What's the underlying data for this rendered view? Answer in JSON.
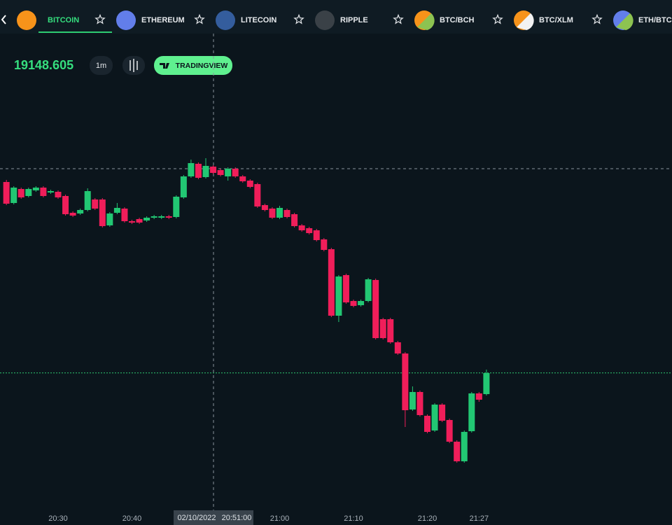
{
  "tabs": [
    {
      "label": "BITCOIN"
    },
    {
      "label": "ETHEREUM"
    },
    {
      "label": "LITECOIN"
    },
    {
      "label": "RIPPLE"
    },
    {
      "label": "BTC/BCH"
    },
    {
      "label": "BTC/XLM"
    },
    {
      "label": "ETH/BTC"
    }
  ],
  "toolbar": {
    "price": 19148.605,
    "interval": "1m",
    "tradingview": "TRADINGVIEW"
  },
  "crosshair": {
    "date": "02/10/2022",
    "time": "20:51:00"
  },
  "chart_data": {
    "type": "candlestick",
    "x": [
      "20:23",
      "20:24",
      "20:25",
      "20:26",
      "20:27",
      "20:28",
      "20:29",
      "20:30",
      "20:31",
      "20:32",
      "20:33",
      "20:34",
      "20:35",
      "20:36",
      "20:37",
      "20:38",
      "20:39",
      "20:40",
      "20:41",
      "20:42",
      "20:43",
      "20:44",
      "20:45",
      "20:46",
      "20:47",
      "20:48",
      "20:49",
      "20:50",
      "20:51",
      "20:52",
      "20:53",
      "20:54",
      "20:55",
      "20:56",
      "20:57",
      "20:58",
      "20:59",
      "21:00",
      "21:01",
      "21:02",
      "21:03",
      "21:04",
      "21:05",
      "21:06",
      "21:07",
      "21:08",
      "21:09",
      "21:10",
      "21:11",
      "21:12",
      "21:13",
      "21:14",
      "21:15",
      "21:16",
      "21:17",
      "21:18",
      "21:19",
      "21:20",
      "21:21",
      "21:22",
      "21:23",
      "21:24",
      "21:25",
      "21:26",
      "21:27",
      "21:28"
    ],
    "open": [
      19285,
      19270,
      19280,
      19275,
      19279,
      19281,
      19277.5,
      19278,
      19275,
      19263,
      19262.5,
      19265,
      19272.5,
      19272.5,
      19254,
      19263,
      19266,
      19257,
      19258.5,
      19257.5,
      19259.5,
      19259.5,
      19260.5,
      19260,
      19274,
      19289,
      19298,
      19288.5,
      19296,
      19293.5,
      19289,
      19294.5,
      19289,
      19286,
      19283.5,
      19268.5,
      19266,
      19259.5,
      19265,
      19262,
      19254,
      19252,
      19250.5,
      19244,
      19237,
      19189.5,
      19218.5,
      19200,
      19197,
      19200,
      19215,
      19187,
      19187,
      19170.5,
      19162.5,
      19122.5,
      19135,
      19118,
      19107.5,
      19126,
      19115,
      19099.5,
      19085.5,
      19107,
      19134,
      19133.5
    ],
    "high": [
      19286.5,
      19282,
      19281,
      19281,
      19282,
      19282,
      19279.5,
      19279,
      19276,
      19264,
      19266,
      19280.5,
      19273.5,
      19273.5,
      19263.5,
      19270,
      19267,
      19258,
      19259.5,
      19260.5,
      19261.5,
      19261.5,
      19261.5,
      19275.5,
      19290,
      19301,
      19299,
      19302,
      19297,
      19294.5,
      19295.5,
      19295.5,
      19290,
      19287,
      19284.5,
      19269.5,
      19267,
      19268,
      19266,
      19263,
      19255,
      19253,
      19251.5,
      19245,
      19238,
      19218.5,
      19219.5,
      19201,
      19201,
      19216.5,
      19216,
      19188,
      19188,
      19171.5,
      19163.5,
      19139,
      19136,
      19119,
      19127,
      19127,
      19116,
      19100.5,
      19107.5,
      19135,
      19135,
      19151
    ],
    "low": [
      19268.5,
      19269,
      19273,
      19274,
      19278,
      19274,
      19276.5,
      19273,
      19261,
      19260,
      19261.5,
      19264,
      19265,
      19252.5,
      19253,
      19262,
      19256,
      19255,
      19255,
      19256.5,
      19258.5,
      19258.5,
      19258.5,
      19259,
      19273,
      19288,
      19287,
      19287.5,
      19290.5,
      19289,
      19286,
      19288,
      19284.5,
      19280.5,
      19266.5,
      19264,
      19258.5,
      19258.5,
      19259,
      19252.5,
      19249.5,
      19247.5,
      19242.5,
      19235.5,
      19188.5,
      19185,
      19198,
      19195.5,
      19196,
      19199,
      19172.5,
      19172.5,
      19169.5,
      19161.5,
      19110,
      19121.5,
      19117.5,
      19105.5,
      19106.5,
      19113.5,
      19098.5,
      19084.5,
      19084.5,
      19106,
      19128,
      19132.5
    ],
    "close": [
      19269.5,
      19281,
      19274,
      19280,
      19281,
      19275,
      19278.5,
      19274,
      19262,
      19261,
      19265,
      19278.5,
      19266,
      19253.5,
      19262.5,
      19266.5,
      19257,
      19256,
      19256,
      19259.5,
      19260.5,
      19260.5,
      19259.5,
      19274.5,
      19289,
      19298.5,
      19288,
      19296.5,
      19291.5,
      19290,
      19294.5,
      19289,
      19285.5,
      19281.5,
      19267.5,
      19265,
      19259.5,
      19266.5,
      19260,
      19253.5,
      19250.5,
      19248.5,
      19243.5,
      19236.5,
      19189.5,
      19217.5,
      19199,
      19196.5,
      19200,
      19215.5,
      19173.5,
      19173.5,
      19170.5,
      19162.5,
      19122,
      19135,
      19118.5,
      19106.5,
      19126,
      19114.5,
      19099.5,
      19085.5,
      19106.5,
      19134,
      19129.5,
      19148.5
    ],
    "ylim": [
      19050,
      19390
    ],
    "xticks": [
      "20:30",
      "20:40",
      "21:00",
      "21:10",
      "21:20",
      "21:27"
    ],
    "up_color": "#22c773",
    "down_color": "#f01e5a",
    "last_price_color": "#2ecc71",
    "grid": false
  }
}
